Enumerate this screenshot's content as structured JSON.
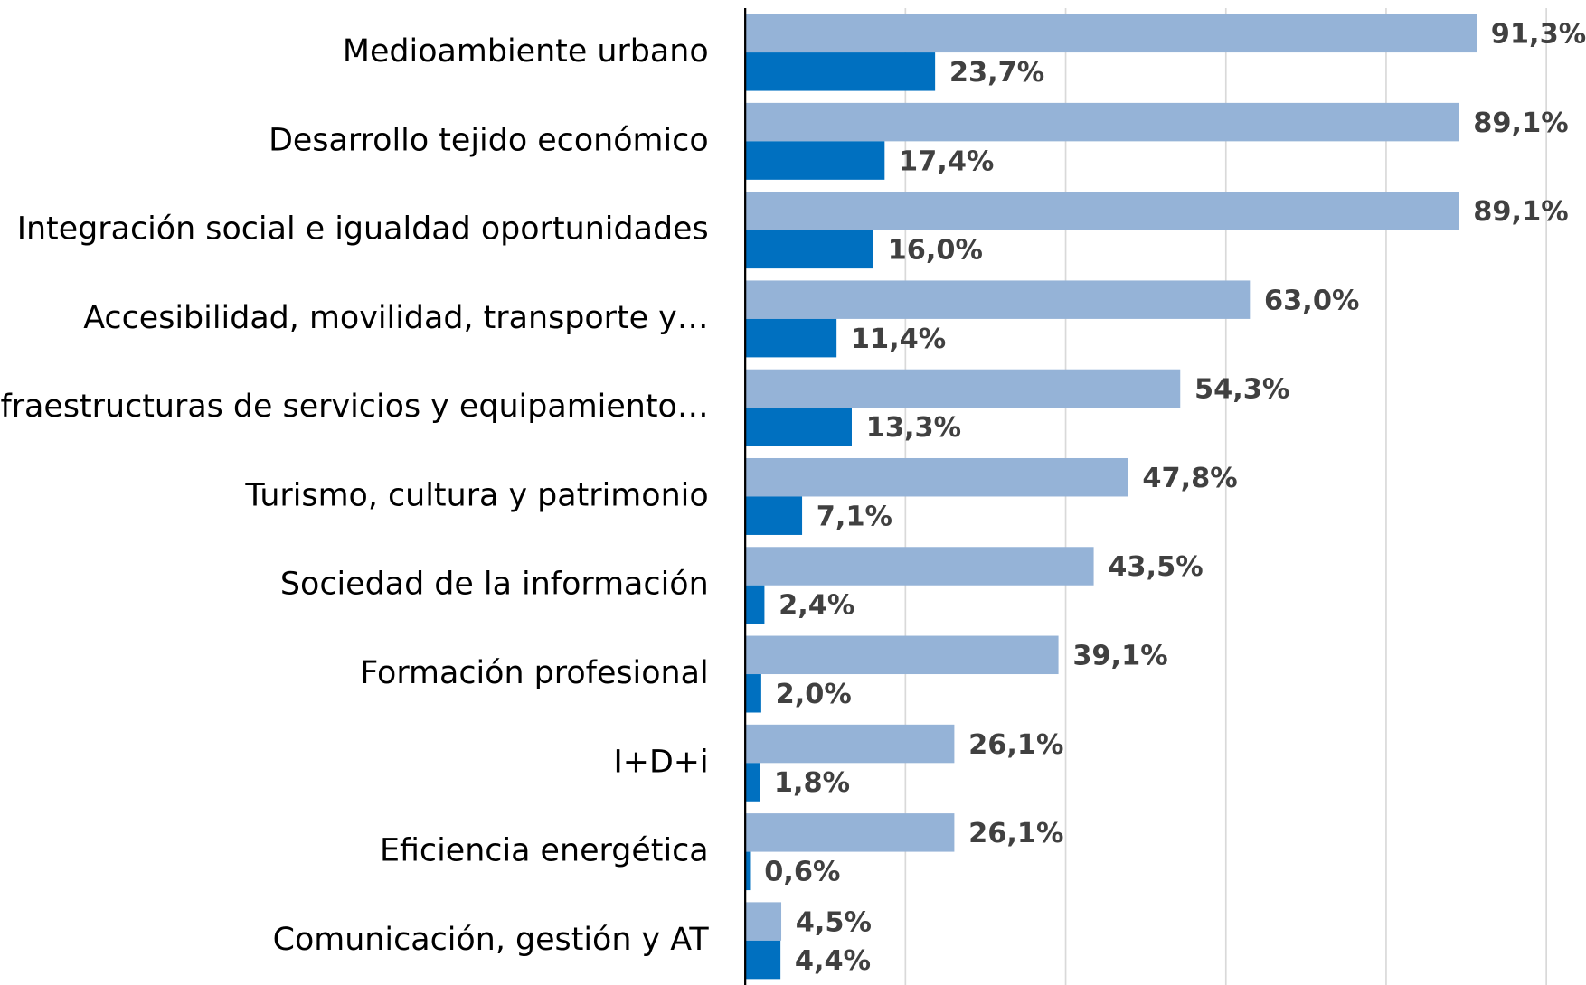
{
  "chart_data": {
    "type": "bar",
    "orientation": "horizontal",
    "categories": [
      "Medioambiente urbano",
      "Desarrollo tejido económico",
      "Integración social e igualdad oportunidades",
      "Accesibilidad, movilidad, transporte y…",
      "Infraestructuras de servicios y equipamiento…",
      "Turismo, cultura y patrimonio",
      "Sociedad de la información",
      "Formación profesional",
      "I+D+i",
      "Eficiencia energética",
      "Comunicación, gestión y AT"
    ],
    "series": [
      {
        "color": "#95b3d7",
        "values": [
          91.3,
          89.1,
          89.1,
          63.0,
          54.3,
          47.8,
          43.5,
          39.1,
          26.1,
          26.1,
          4.5
        ],
        "value_labels": [
          "91,3%",
          "89,1%",
          "89,1%",
          "63,0%",
          "54,3%",
          "47,8%",
          "43,5%",
          "39,1%",
          "26,1%",
          "26,1%",
          "4,5%"
        ]
      },
      {
        "color": "#0070c0",
        "values": [
          23.7,
          17.4,
          16.0,
          11.4,
          13.3,
          7.1,
          2.4,
          2.0,
          1.8,
          0.6,
          4.4
        ],
        "value_labels": [
          "23,7%",
          "17,4%",
          "16,0%",
          "11,4%",
          "13,3%",
          "7,1%",
          "2,4%",
          "2,0%",
          "1,8%",
          "0,6%",
          "4,4%"
        ]
      }
    ],
    "xlim": [
      0,
      100
    ],
    "xticks": [
      0,
      20,
      40,
      60,
      80,
      100
    ],
    "grid": true
  }
}
